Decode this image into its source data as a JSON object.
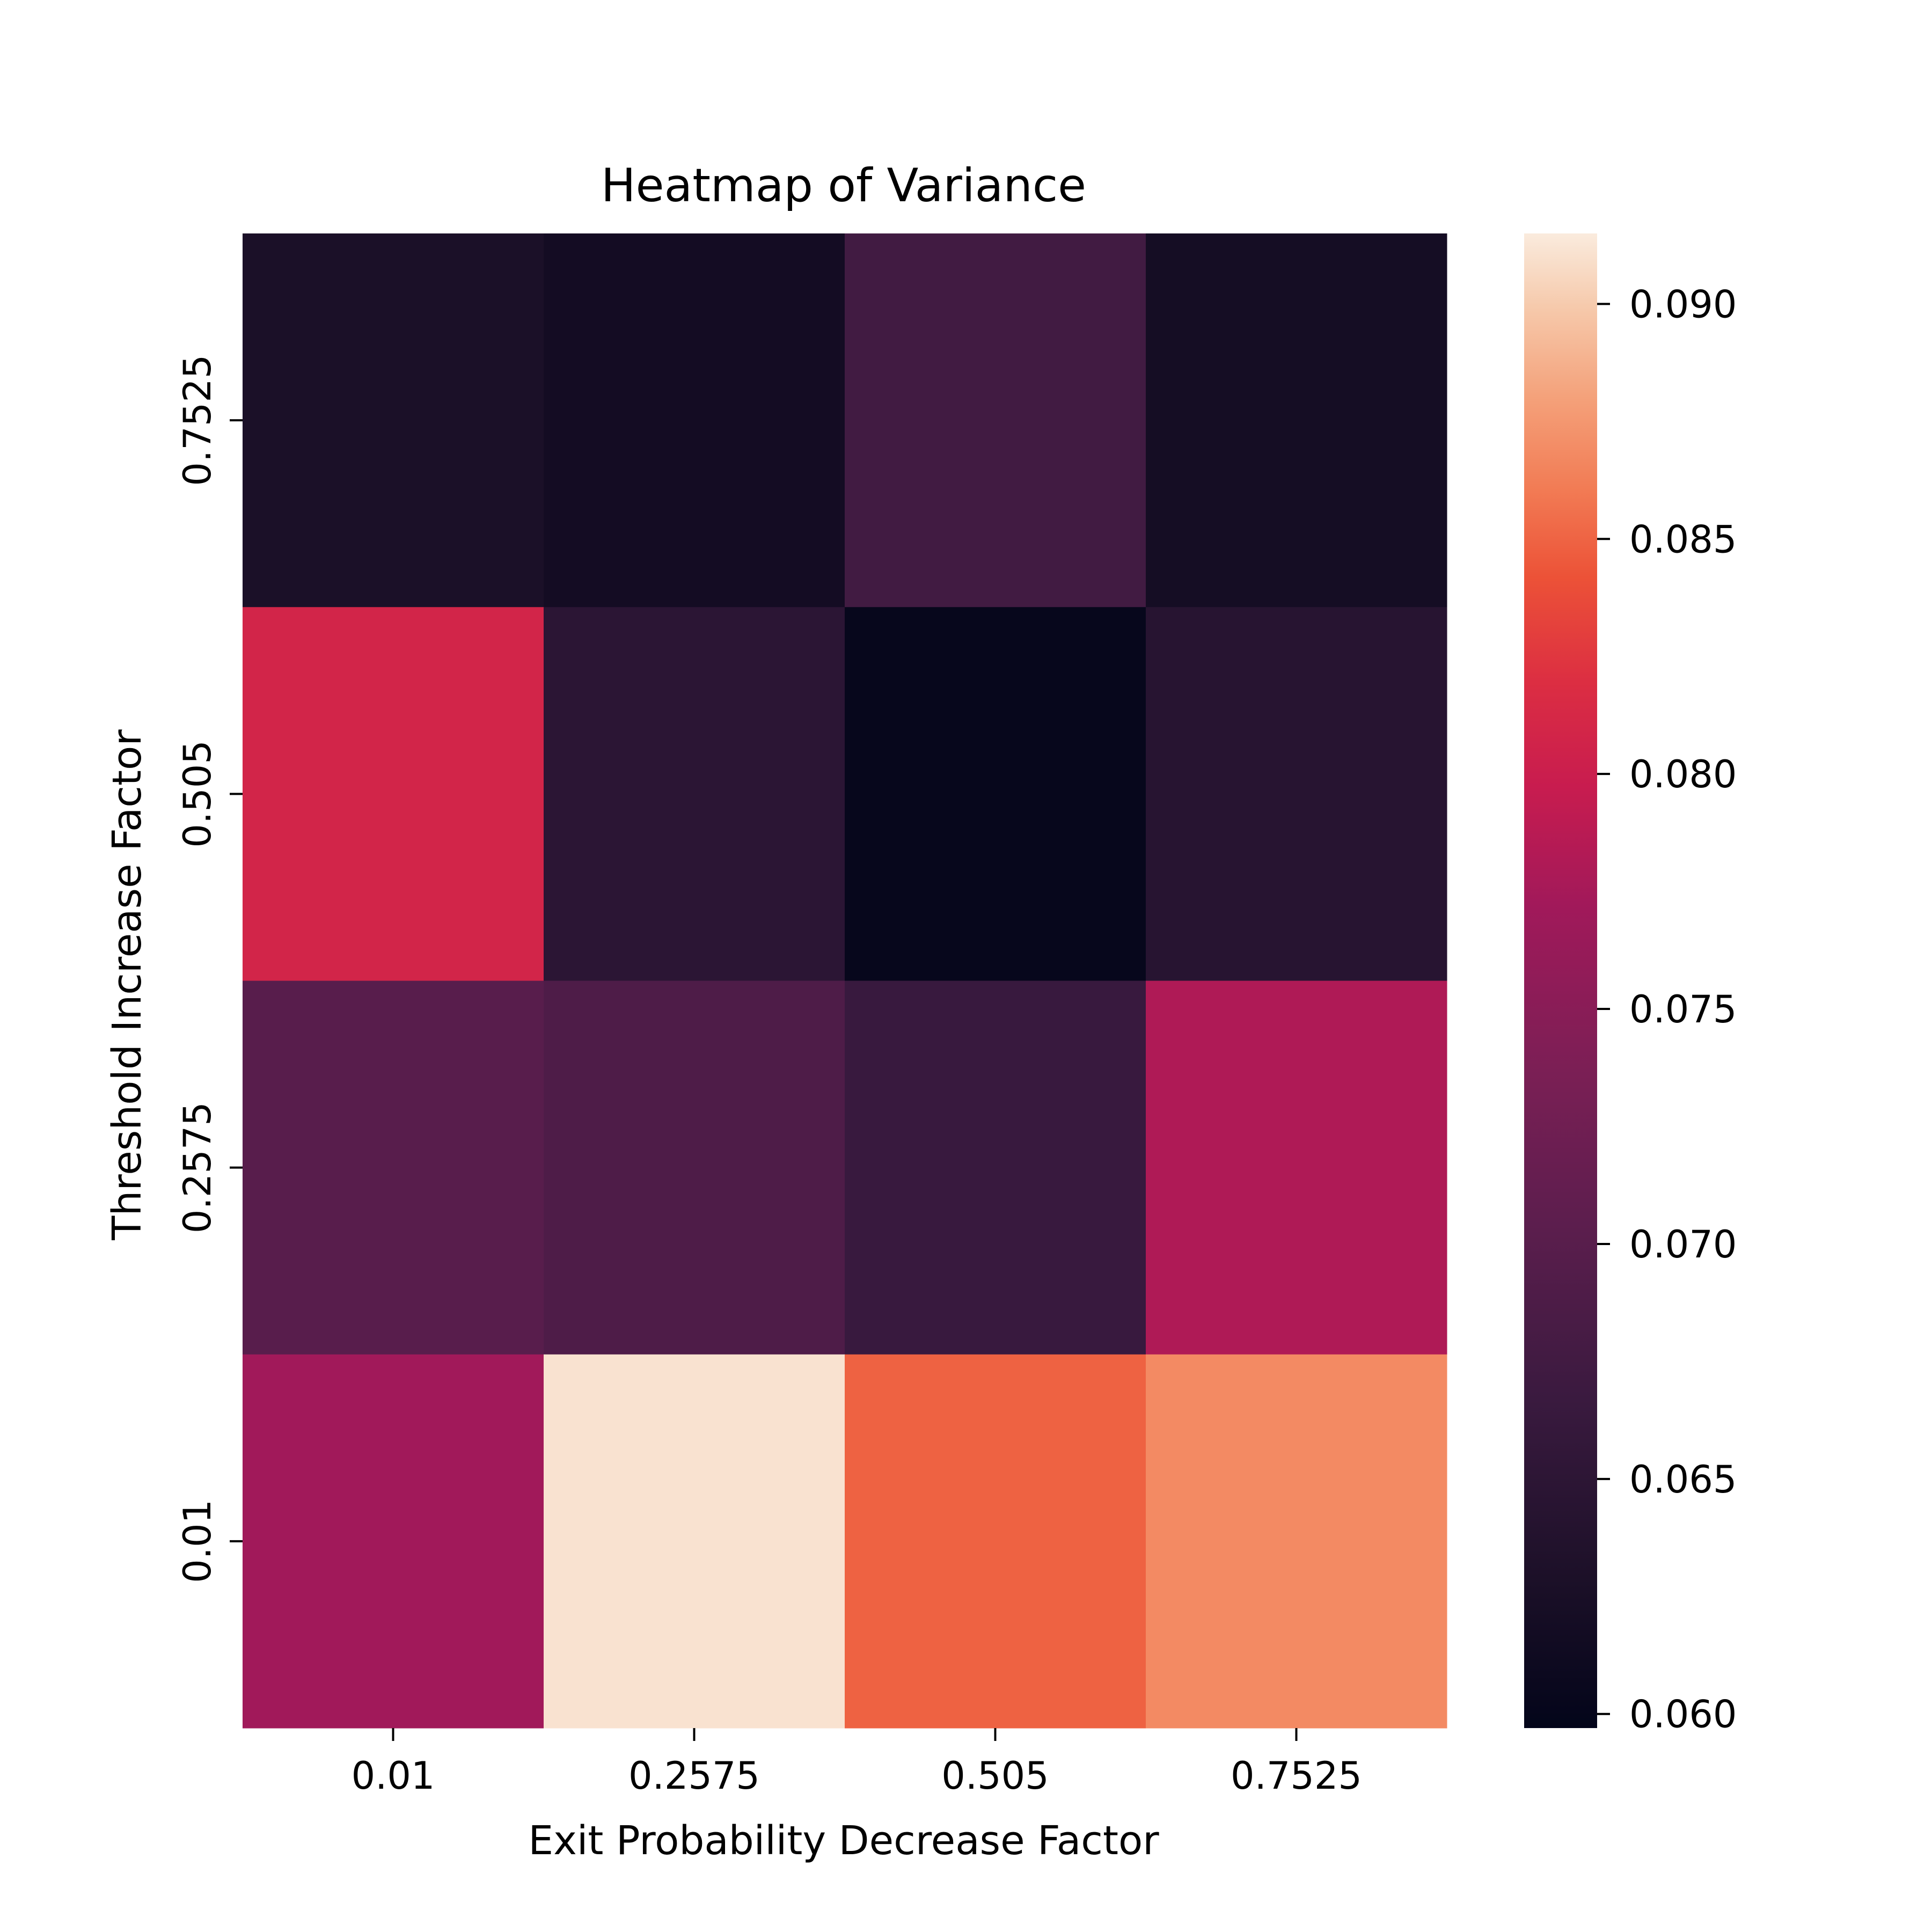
{
  "chart_data": {
    "type": "heatmap",
    "title": "Heatmap of Variance",
    "xlabel": "Exit Probability Decrease Factor",
    "ylabel": "Threshold Increase Factor",
    "x_categories": [
      "0.01",
      "0.2575",
      "0.505",
      "0.7525"
    ],
    "y_categories": [
      "0.7525",
      "0.505",
      "0.2575",
      "0.01"
    ],
    "values": [
      [
        0.0628,
        0.0618,
        0.0675,
        0.062
      ],
      [
        0.0808,
        0.0648,
        0.0602,
        0.0643
      ],
      [
        0.07,
        0.0689,
        0.0665,
        0.0781
      ],
      [
        0.0772,
        0.0911,
        0.0849,
        0.0868
      ]
    ],
    "colorbar": {
      "min": 0.0597,
      "max": 0.0915,
      "ticks": [
        "0.060",
        "0.065",
        "0.070",
        "0.075",
        "0.080",
        "0.085",
        "0.090"
      ],
      "colormap": "rocket"
    },
    "grid": false,
    "legend": "none"
  }
}
